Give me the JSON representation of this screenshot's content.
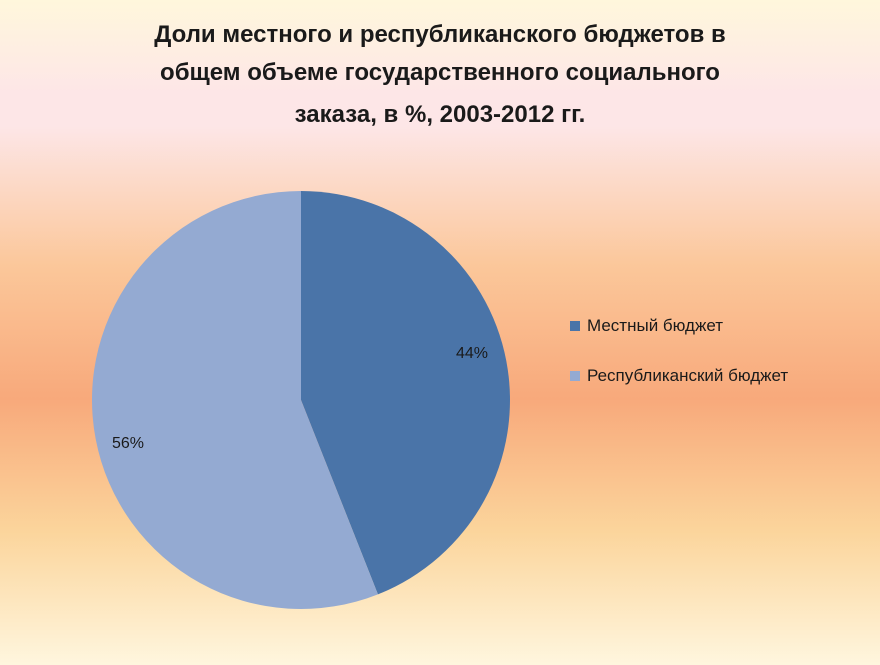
{
  "chart_data": {
    "type": "pie",
    "title_lines": [
      "Доли местного и республиканского бюджетов в",
      "общем объеме  государственного социального",
      "заказа, в %, 2003-2012 гг."
    ],
    "categories": [
      "Местный бюджет",
      "Республиканский бюджет"
    ],
    "values": [
      44,
      56
    ],
    "data_labels": [
      "44%",
      "56%"
    ],
    "colors": [
      "#4a74a8",
      "#94aad2"
    ],
    "legend_position": "right",
    "start_angle_deg": 0,
    "direction": "clockwise"
  }
}
